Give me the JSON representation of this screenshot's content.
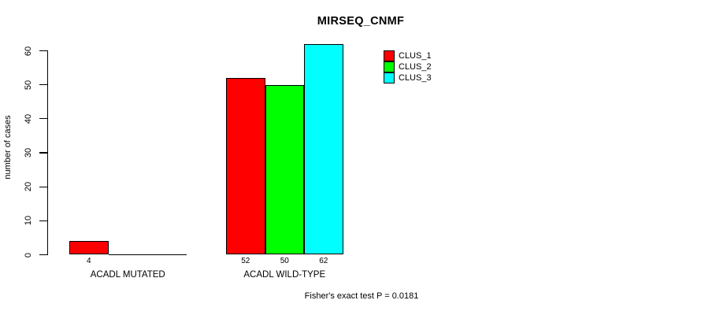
{
  "chart_data": {
    "type": "bar",
    "title": "MIRSEQ_CNMF",
    "xlabel": "",
    "ylabel": "number of cases",
    "categories": [
      "ACADL MUTATED",
      "ACADL WILD-TYPE"
    ],
    "series": [
      {
        "name": "CLUS_1",
        "color": "#FF0000",
        "values": [
          4,
          52
        ]
      },
      {
        "name": "CLUS_2",
        "color": "#00FF00",
        "values": [
          0,
          50
        ]
      },
      {
        "name": "CLUS_3",
        "color": "#00FFFF",
        "values": [
          0,
          62
        ]
      }
    ],
    "bar_value_labels": [
      [
        "4",
        "",
        ""
      ],
      [
        "52",
        "50",
        "62"
      ]
    ],
    "ylim": [
      0,
      60
    ],
    "yticks": [
      "0",
      "10",
      "20",
      "30",
      "40",
      "50",
      "60"
    ],
    "grid": false,
    "legend_position": "top-right-inside",
    "annotation": "Fisher's exact test P = 0.0181",
    "colors": {
      "background": "#FFFFFF",
      "axis": "#000000",
      "text": "#000000"
    }
  }
}
